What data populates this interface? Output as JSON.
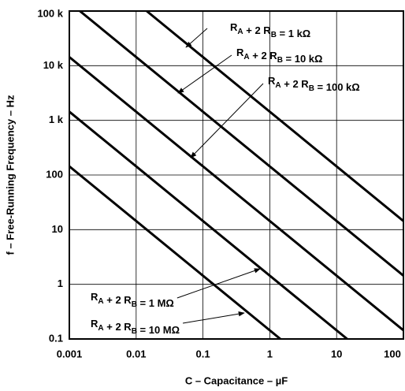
{
  "chart_data": {
    "type": "line",
    "x_label": "C – Capacitance – µF",
    "y_label": "f – Free-Running Frequency – Hz",
    "xscale": "log",
    "yscale": "log",
    "grid": true,
    "xlim": [
      0.001,
      100
    ],
    "ylim": [
      0.1,
      100000
    ],
    "xticks": [
      0.001,
      0.01,
      0.1,
      1,
      10,
      100
    ],
    "yticks": [
      0.1,
      1,
      10,
      100,
      {
        "value": 1000,
        "label": "1 k"
      },
      {
        "value": 10000,
        "label": "10 k"
      },
      {
        "value": 100000,
        "label": "100 k"
      }
    ],
    "series": [
      {
        "name": "RA + 2 RB = 1 kΩ",
        "color": "#000000",
        "x": [
          0.0144,
          100
        ],
        "values": [
          100000,
          14.4
        ]
      },
      {
        "name": "RA + 2 RB = 10 kΩ",
        "color": "#000000",
        "x": [
          0.00144,
          100
        ],
        "values": [
          100000,
          1.44
        ]
      },
      {
        "name": "RA + 2 RB = 100 kΩ",
        "color": "#000000",
        "x": [
          0.001,
          100
        ],
        "values": [
          14400,
          0.144
        ]
      },
      {
        "name": "RA + 2 RB = 1 MΩ",
        "color": "#000000",
        "x": [
          0.001,
          14.4
        ],
        "values": [
          1440,
          0.1
        ]
      },
      {
        "name": "RA + 2 RB = 10 MΩ",
        "color": "#000000",
        "x": [
          0.001,
          1.44
        ],
        "values": [
          144,
          0.1
        ]
      }
    ]
  }
}
